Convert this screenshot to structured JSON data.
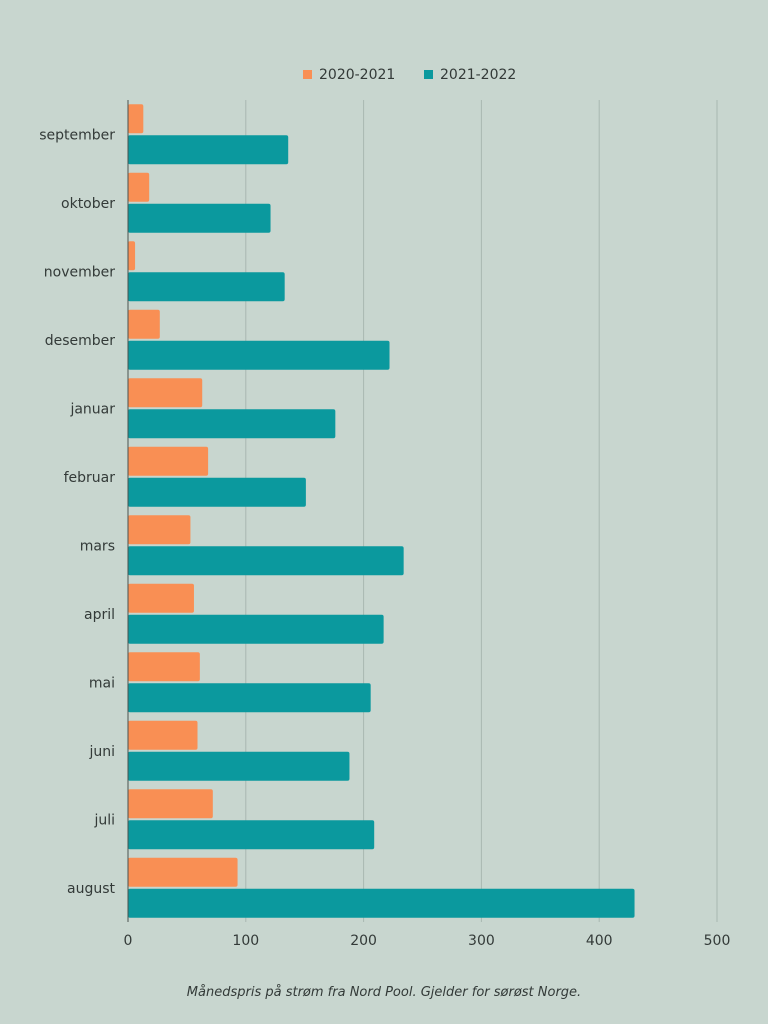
{
  "chart_data": {
    "type": "bar",
    "orientation": "horizontal",
    "categories": [
      "september",
      "oktober",
      "november",
      "desember",
      "januar",
      "februar",
      "mars",
      "april",
      "mai",
      "juni",
      "juli",
      "august"
    ],
    "series": [
      {
        "name": "2020-2021",
        "color": "#f98f54",
        "values": [
          13,
          18,
          6,
          27,
          63,
          68,
          53,
          56,
          61,
          59,
          72,
          93
        ]
      },
      {
        "name": "2021-2022",
        "color": "#0b999e",
        "values": [
          136,
          121,
          133,
          222,
          176,
          151,
          234,
          217,
          206,
          188,
          209,
          430
        ]
      }
    ],
    "xlim": [
      0,
      500
    ],
    "xticks": [
      0,
      100,
      200,
      300,
      400,
      500
    ],
    "grid": true,
    "legend_position": "top-center",
    "caption": "Månedspris på strøm fra Nord Pool. Gjelder for sørøst Norge."
  }
}
